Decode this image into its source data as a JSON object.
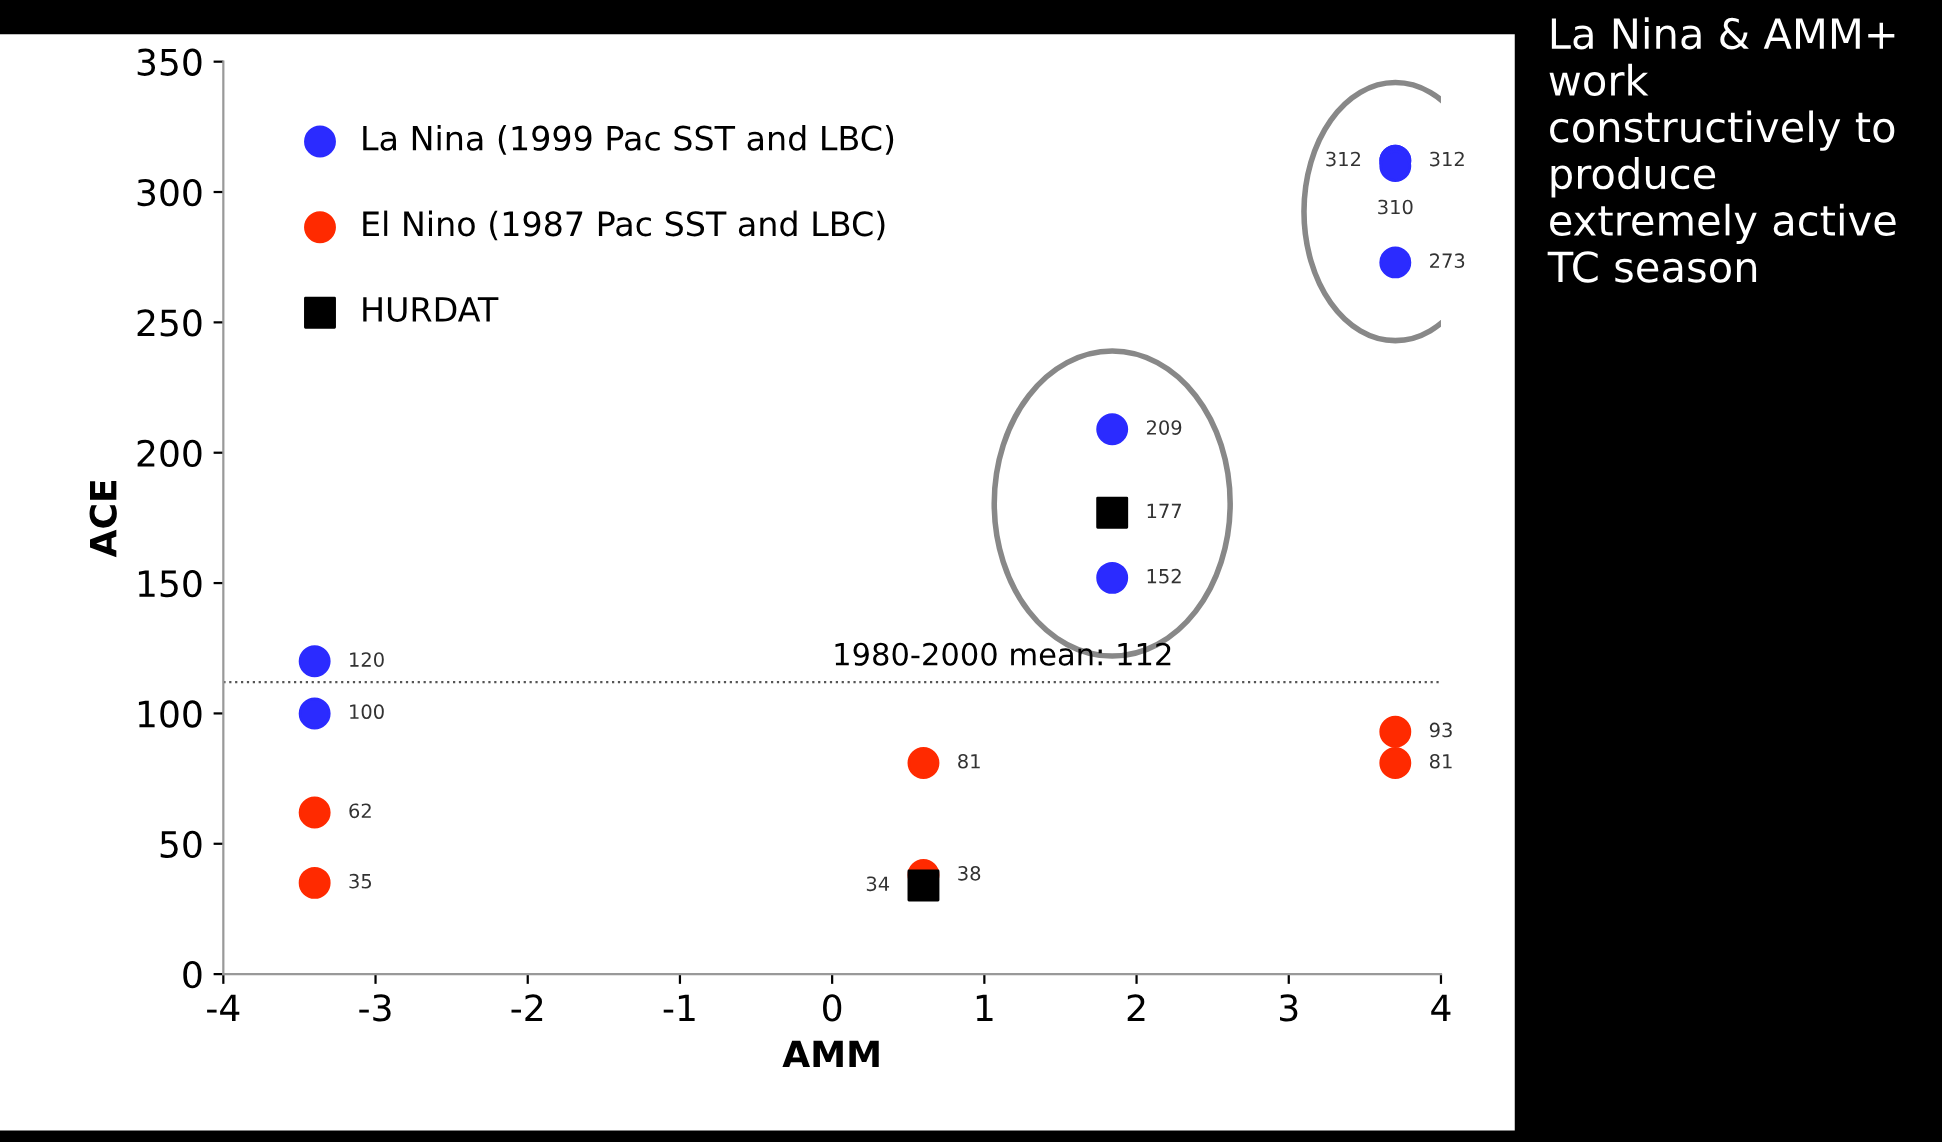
{
  "chart_data": {
    "type": "scatter",
    "xlabel": "AMM",
    "ylabel": "ACE",
    "xlim": [
      -4,
      4
    ],
    "xticks": [
      -4,
      -3,
      -2,
      -1,
      0,
      1,
      2,
      3,
      4
    ],
    "ylim": [
      0,
      350
    ],
    "yticks": [
      0,
      50,
      100,
      150,
      200,
      250,
      300,
      350
    ],
    "grid": false,
    "legend": "top left",
    "data_labels": true,
    "series": [
      {
        "name": "La Nina (1999 Pac SST and LBC)",
        "color": "#2b2bff",
        "marker": "circle",
        "x": [
          -3.4,
          -3.4,
          1.84,
          1.84,
          3.7,
          3.7,
          3.7,
          3.7
        ],
        "values": [
          120,
          100,
          209,
          152,
          312,
          312,
          310,
          273
        ]
      },
      {
        "name": "El Nino (1987 Pac SST and LBC)",
        "color": "#ff2a00",
        "marker": "circle",
        "x": [
          -3.4,
          -3.4,
          0.6,
          0.6,
          3.7,
          3.7
        ],
        "values": [
          62,
          35,
          81,
          38,
          93,
          81
        ]
      },
      {
        "name": "HURDAT",
        "color": "#000000",
        "marker": "square",
        "x": [
          1.84,
          0.6
        ],
        "values": [
          177,
          34
        ]
      }
    ],
    "ref_lines": [
      {
        "axis": "y",
        "value": 112,
        "label": "1980-2000 mean: 112",
        "line_style": "dotted",
        "color": "#555555"
      }
    ],
    "annotations": [
      "La Nina & AMM+ work constructively to produce extremely active TC season"
    ]
  }
}
